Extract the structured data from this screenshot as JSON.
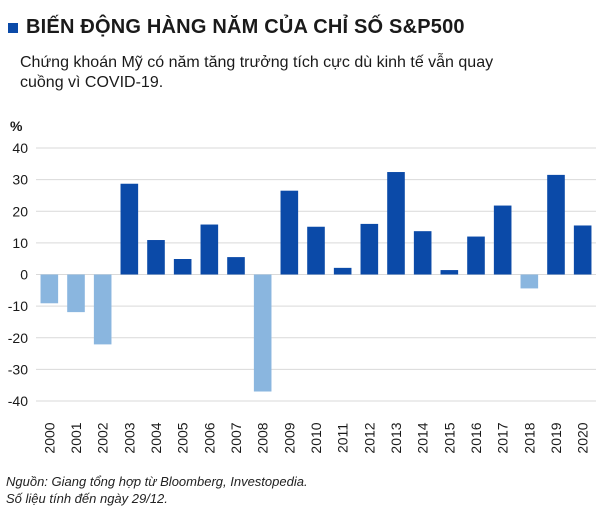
{
  "header": {
    "title": "BIẾN ĐỘNG HÀNG NĂM CỦA CHỈ SỐ S&P500",
    "subtitle": "Chứng khoán Mỹ có năm tăng trưởng tích cực dù kinh tế vẫn quay cuồng vì COVID-19."
  },
  "source": {
    "line1": "Nguồn: Giang tổng hợp từ Bloomberg, Investopedia.",
    "line2": "Số liệu tính đến ngày 29/12."
  },
  "colors": {
    "positive": "#0b4aa8",
    "negative": "#8ab6df",
    "grid": "#d9d9d9",
    "text": "#1a1a1a"
  },
  "chart_data": {
    "type": "bar",
    "title": "BIẾN ĐỘNG HÀNG NĂM CỦA CHỈ SỐ S&P500",
    "ylabel": "%",
    "xlabel": "",
    "ylim": [
      -40,
      40
    ],
    "yticks": [
      40,
      30,
      20,
      10,
      0,
      -10,
      -20,
      -30,
      -40
    ],
    "grid": true,
    "categories": [
      "2000",
      "2001",
      "2002",
      "2003",
      "2004",
      "2005",
      "2006",
      "2007",
      "2008",
      "2009",
      "2010",
      "2011",
      "2012",
      "2013",
      "2014",
      "2015",
      "2016",
      "2017",
      "2018",
      "2019",
      "2020"
    ],
    "values": [
      -9.1,
      -11.9,
      -22.1,
      28.7,
      10.9,
      4.9,
      15.8,
      5.5,
      -37.0,
      26.5,
      15.1,
      2.1,
      16.0,
      32.4,
      13.7,
      1.4,
      12.0,
      21.8,
      -4.4,
      31.5,
      15.5
    ]
  }
}
